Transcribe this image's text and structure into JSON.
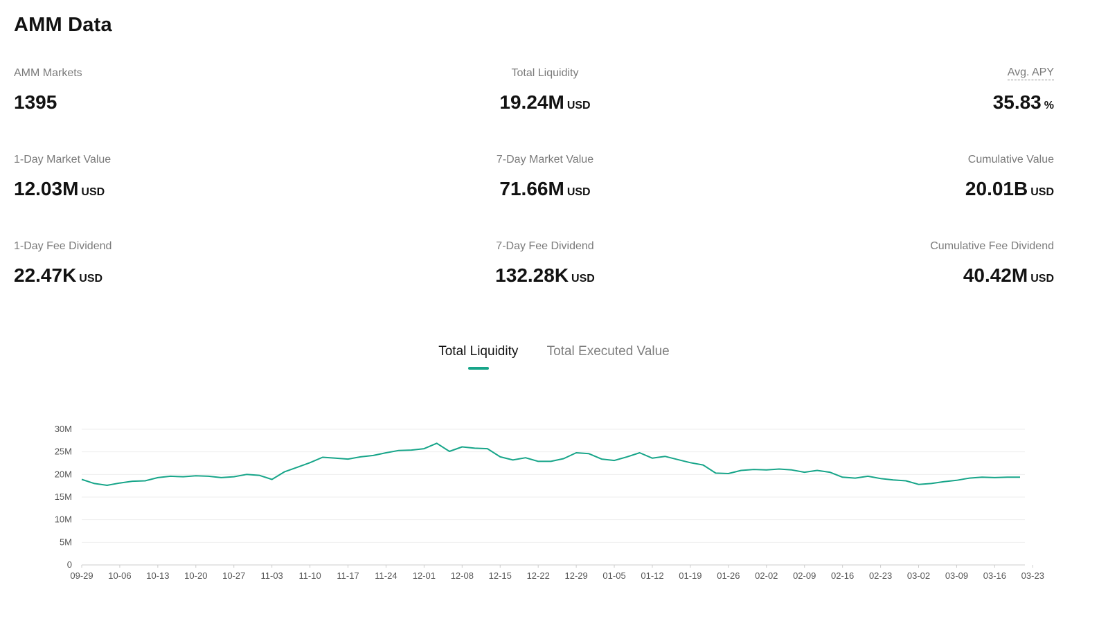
{
  "page": {
    "title": "AMM Data"
  },
  "stats": {
    "row1": [
      {
        "label": "AMM Markets",
        "value": "1395",
        "unit": ""
      },
      {
        "label": "Total Liquidity",
        "value": "19.24M",
        "unit": "USD"
      },
      {
        "label": "Avg. APY",
        "value": "35.83",
        "unit": "%"
      }
    ],
    "row2": [
      {
        "label": "1-Day Market Value",
        "value": "12.03M",
        "unit": "USD"
      },
      {
        "label": "7-Day Market Value",
        "value": "71.66M",
        "unit": "USD"
      },
      {
        "label": "Cumulative Value",
        "value": "20.01B",
        "unit": "USD"
      }
    ],
    "row3": [
      {
        "label": "1-Day Fee Dividend",
        "value": "22.47K",
        "unit": "USD"
      },
      {
        "label": "7-Day Fee Dividend",
        "value": "132.28K",
        "unit": "USD"
      },
      {
        "label": "Cumulative Fee Dividend",
        "value": "40.42M",
        "unit": "USD"
      }
    ]
  },
  "tabs": [
    {
      "label": "Total Liquidity",
      "active": true
    },
    {
      "label": "Total Executed Value",
      "active": false
    }
  ],
  "colors": {
    "accent": "#17a589",
    "line": "#17a589",
    "grid": "#eeeeee"
  },
  "chart_data": {
    "type": "line",
    "title": "",
    "xlabel": "",
    "ylabel": "",
    "ylim": [
      0,
      30000000
    ],
    "y_ticks": [
      {
        "value": 30000000,
        "label": "30M"
      },
      {
        "value": 25000000,
        "label": "25M"
      },
      {
        "value": 20000000,
        "label": "20M"
      },
      {
        "value": 15000000,
        "label": "15M"
      },
      {
        "value": 10000000,
        "label": "10M"
      },
      {
        "value": 5000000,
        "label": "5M"
      },
      {
        "value": 0,
        "label": "0"
      }
    ],
    "x_tick_labels": [
      "09-29",
      "10-06",
      "10-13",
      "10-20",
      "10-27",
      "11-03",
      "11-10",
      "11-17",
      "11-24",
      "12-01",
      "12-08",
      "12-15",
      "12-22",
      "12-29",
      "01-05",
      "01-12",
      "01-19",
      "01-26",
      "02-02",
      "02-09",
      "02-16",
      "02-23",
      "03-02",
      "03-09",
      "03-16",
      "03-23"
    ],
    "grid": true,
    "legend": "none",
    "series": [
      {
        "values": [
          18.9,
          18.0,
          17.6,
          18.1,
          18.5,
          18.6,
          19.3,
          19.6,
          19.5,
          19.7,
          19.6,
          19.3,
          19.5,
          20.0,
          19.8,
          18.9,
          20.6,
          21.6,
          22.6,
          23.8,
          23.6,
          23.4,
          23.9,
          24.2,
          24.8,
          25.3,
          25.4,
          25.7,
          26.9,
          25.1,
          26.1,
          25.8,
          25.7,
          23.9,
          23.2,
          23.7,
          22.9,
          22.9,
          23.5,
          24.8,
          24.6,
          23.4,
          23.1,
          23.9,
          24.8,
          23.6,
          24.0,
          23.3,
          22.6,
          22.1,
          20.3,
          20.2,
          20.9,
          21.1,
          21.0,
          21.2,
          21.0,
          20.5,
          20.9,
          20.5,
          19.4,
          19.2,
          19.6,
          19.1,
          18.8,
          18.6,
          17.8,
          18.0,
          18.4,
          18.7,
          19.2,
          19.4,
          19.3,
          19.4,
          19.4
        ]
      }
    ]
  }
}
